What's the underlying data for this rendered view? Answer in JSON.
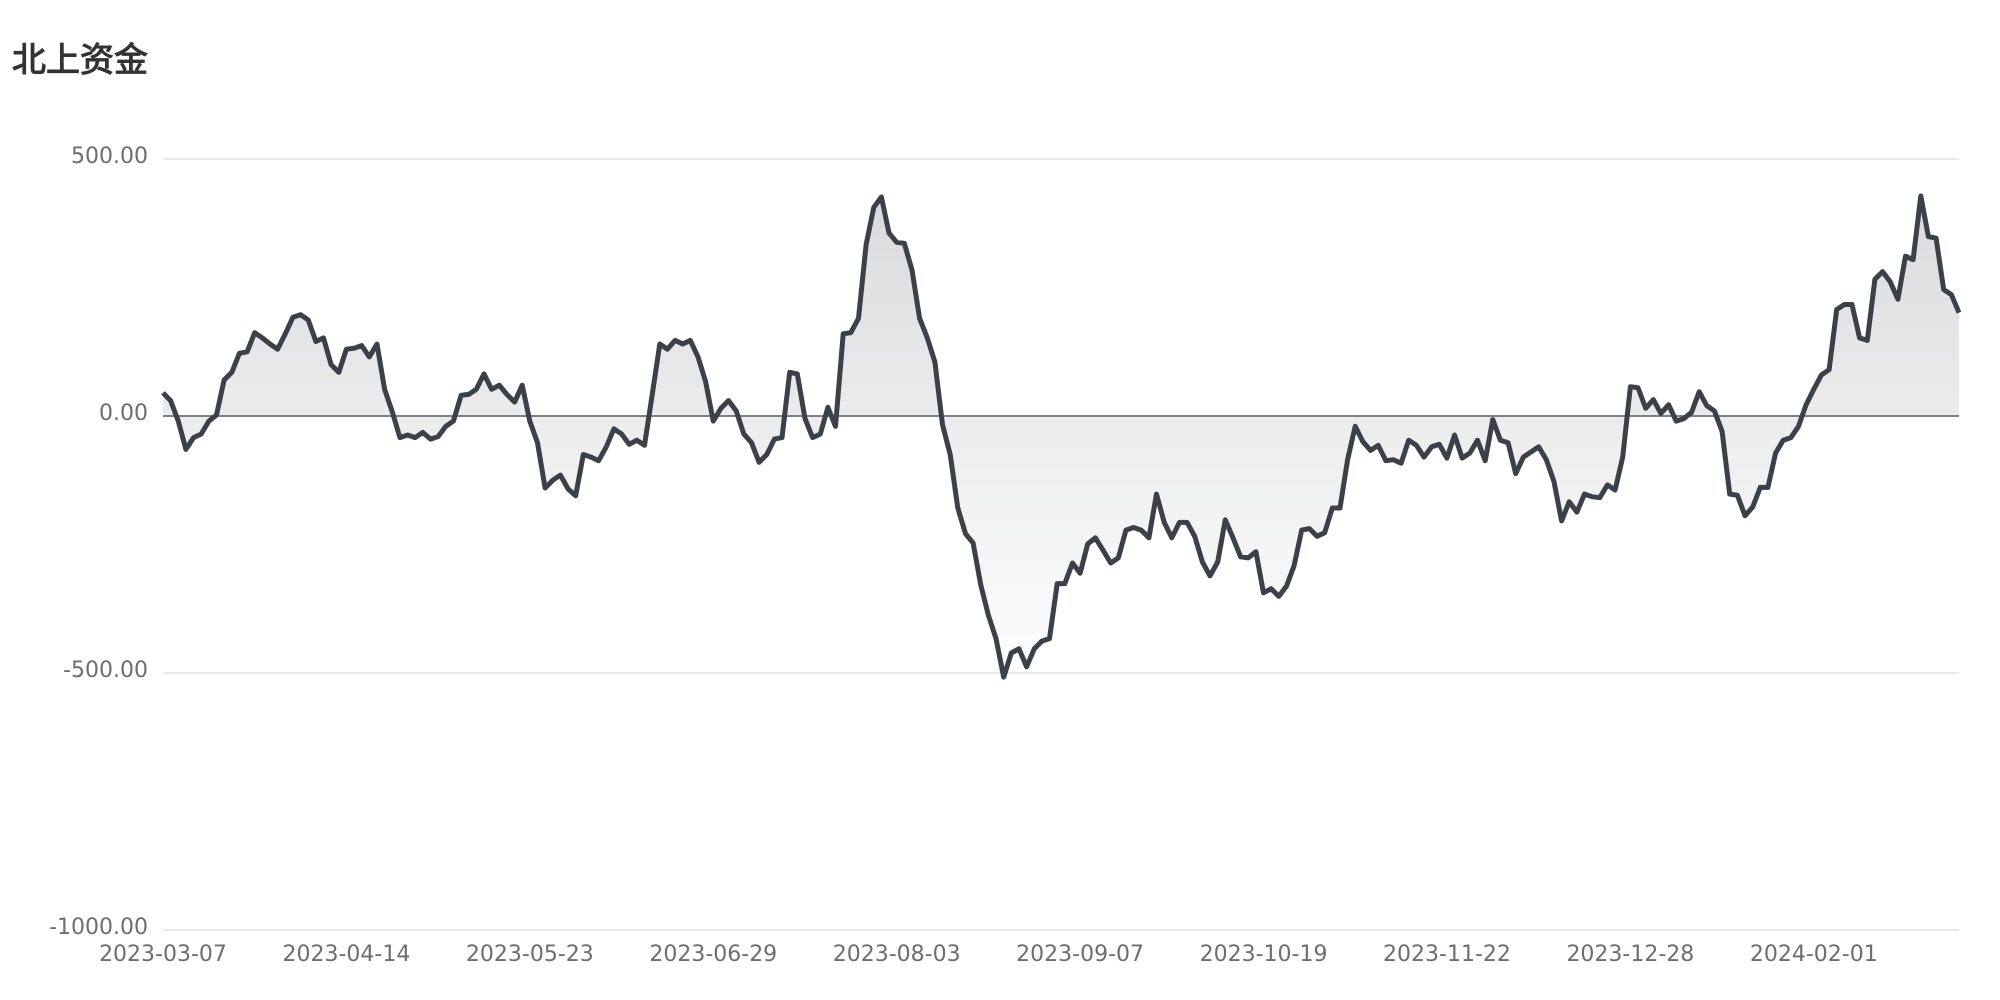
{
  "chart_data": {
    "type": "line",
    "title": "北上资金",
    "area": true,
    "grid": true,
    "color": "#3b4049",
    "ylim": [
      -1000,
      500
    ],
    "yticks": [
      {
        "value": -1000,
        "label": "-1000.00"
      },
      {
        "value": -500,
        "label": "-500.00"
      },
      {
        "value": 0,
        "label": "0.00"
      },
      {
        "value": 500,
        "label": "500.00"
      }
    ],
    "categories": [
      "2023-03-07",
      null,
      null,
      null,
      null,
      null,
      null,
      null,
      null,
      null,
      null,
      null,
      null,
      null,
      null,
      null,
      null,
      null,
      null,
      null,
      null,
      null,
      null,
      null,
      "2023-04-14",
      null,
      null,
      null,
      null,
      null,
      null,
      null,
      null,
      null,
      null,
      null,
      null,
      null,
      null,
      null,
      null,
      null,
      null,
      null,
      null,
      null,
      null,
      null,
      "2023-05-23",
      null,
      null,
      null,
      null,
      null,
      null,
      null,
      null,
      null,
      null,
      null,
      null,
      null,
      null,
      null,
      null,
      null,
      null,
      null,
      null,
      null,
      null,
      null,
      "2023-06-29",
      null,
      null,
      null,
      null,
      null,
      null,
      null,
      null,
      null,
      null,
      null,
      null,
      null,
      null,
      null,
      null,
      null,
      null,
      null,
      null,
      null,
      null,
      null,
      "2023-08-03",
      null,
      null,
      null,
      null,
      null,
      null,
      null,
      null,
      null,
      null,
      null,
      null,
      null,
      null,
      null,
      null,
      null,
      null,
      null,
      null,
      null,
      null,
      null,
      "2023-09-07",
      null,
      null,
      null,
      null,
      null,
      null,
      null,
      null,
      null,
      null,
      null,
      null,
      null,
      null,
      null,
      null,
      null,
      null,
      null,
      null,
      null,
      null,
      null,
      "2023-10-19",
      null,
      null,
      null,
      null,
      null,
      null,
      null,
      null,
      null,
      null,
      null,
      null,
      null,
      null,
      null,
      null,
      null,
      null,
      null,
      null,
      null,
      null,
      null,
      "2023-11-22",
      null,
      null,
      null,
      null,
      null,
      null,
      null,
      null,
      null,
      null,
      null,
      null,
      null,
      null,
      null,
      null,
      null,
      null,
      null,
      null,
      null,
      null,
      null,
      "2023-12-28",
      null,
      null,
      null,
      null,
      null,
      null,
      null,
      null,
      null,
      null,
      null,
      null,
      null,
      null,
      null,
      null,
      null,
      null,
      null,
      null,
      null,
      null,
      null,
      "2024-02-01",
      null,
      null,
      null,
      null,
      null,
      null,
      null,
      null,
      null,
      null,
      null,
      null,
      null,
      null,
      null,
      null,
      null,
      null,
      null
    ],
    "values": [
      45,
      30,
      -10,
      -65,
      -42,
      -35,
      -10,
      2,
      70,
      85,
      122,
      125,
      162,
      152,
      140,
      130,
      160,
      192,
      197,
      187,
      145,
      152,
      100,
      85,
      130,
      132,
      137,
      115,
      140,
      52,
      8,
      -42,
      -37,
      -42,
      -32,
      -45,
      -40,
      -20,
      -10,
      40,
      42,
      52,
      82,
      52,
      60,
      42,
      27,
      60,
      -10,
      -52,
      -140,
      -125,
      -115,
      -142,
      -155,
      -75,
      -80,
      -87,
      -60,
      -25,
      -35,
      -55,
      -47,
      -57,
      40,
      140,
      130,
      147,
      140,
      147,
      115,
      67,
      -10,
      15,
      30,
      10,
      -35,
      -52,
      -90,
      -75,
      -45,
      -42,
      85,
      82,
      -5,
      -42,
      -35,
      17,
      -20,
      160,
      162,
      190,
      333,
      406,
      426,
      356,
      338,
      336,
      284,
      190,
      152,
      105,
      -17,
      -75,
      -179,
      -229,
      -247,
      -329,
      -388,
      -433,
      -508,
      -461,
      -453,
      -488,
      -453,
      -438,
      -433,
      -326,
      -326,
      -286,
      -306,
      -249,
      -237,
      -261,
      -286,
      -276,
      -222,
      -217,
      -222,
      -237,
      -152,
      -207,
      -237,
      -207,
      -207,
      -234,
      -284,
      -311,
      -284,
      -202,
      -237,
      -274,
      -276,
      -264,
      -344,
      -336,
      -351,
      -331,
      -291,
      -222,
      -219,
      -234,
      -227,
      -179,
      -179,
      -85,
      -20,
      -50,
      -67,
      -57,
      -87,
      -85,
      -92,
      -47,
      -57,
      -80,
      -60,
      -55,
      -82,
      -37,
      -82,
      -72,
      -47,
      -87,
      -7,
      -47,
      -52,
      -112,
      -80,
      -70,
      -60,
      -85,
      -127,
      -204,
      -167,
      -187,
      -152,
      -157,
      -159,
      -134,
      -144,
      -80,
      57,
      55,
      15,
      32,
      5,
      22,
      -10,
      -5,
      7,
      47,
      20,
      10,
      -30,
      -152,
      -154,
      -194,
      -177,
      -139,
      -139,
      -72,
      -47,
      -42,
      -20,
      22,
      52,
      80,
      90,
      207,
      217,
      217,
      152,
      147,
      266,
      281,
      261,
      227,
      311,
      304,
      428,
      349,
      346,
      246,
      236,
      201
    ]
  }
}
